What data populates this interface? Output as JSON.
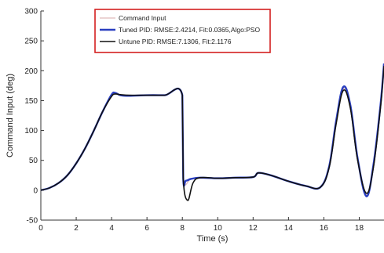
{
  "chart_data": {
    "type": "line",
    "xlabel": "Time (s)",
    "ylabel": "Command Input (deg)",
    "xlim": [
      0,
      19.4
    ],
    "ylim": [
      -50,
      300
    ],
    "xticks": [
      0,
      2,
      4,
      6,
      8,
      10,
      12,
      14,
      16,
      18
    ],
    "yticks": [
      -50,
      0,
      50,
      100,
      150,
      200,
      250,
      300
    ],
    "grid": false,
    "legend_position": "top-center",
    "legend_border_color": "#d42020",
    "series": [
      {
        "name": "Command Input",
        "color": "#d9a8a8",
        "x": [
          0,
          0.5,
          1,
          1.5,
          2,
          2.5,
          3,
          3.5,
          4,
          4.5,
          5,
          6,
          7,
          8,
          8.05,
          8.5,
          9,
          10,
          11,
          12,
          12.3,
          13,
          14,
          15,
          15.8,
          16.3,
          16.7,
          17.1,
          17.5,
          17.9,
          18.4,
          18.8,
          19.2,
          19.4
        ],
        "y": [
          0,
          4,
          12,
          25,
          45,
          70,
          100,
          132,
          160,
          159,
          159,
          159,
          159,
          159,
          20,
          20,
          20,
          20,
          21,
          22,
          29,
          25,
          15,
          7,
          5,
          40,
          115,
          170,
          140,
          55,
          -8,
          40,
          140,
          210
        ]
      },
      {
        "name": "Tuned PID: RMSE:2.4214, Fit:0.0365,Algo:PSO",
        "color": "#2a3fc0",
        "x": [
          0,
          0.5,
          1,
          1.5,
          2,
          2.5,
          3,
          3.5,
          4,
          4.2,
          4.5,
          5,
          6,
          7,
          8,
          8.05,
          8.2,
          8.5,
          9,
          10,
          11,
          12,
          12.3,
          13,
          14,
          15,
          15.8,
          16.3,
          16.7,
          17.1,
          17.5,
          17.9,
          18.4,
          18.8,
          19.2,
          19.4
        ],
        "y": [
          0,
          4,
          12,
          25,
          45,
          70,
          100,
          132,
          160,
          163,
          159,
          158,
          159,
          159,
          159,
          20,
          16,
          19,
          21,
          20,
          21,
          22,
          29,
          25,
          15,
          7,
          5,
          40,
          117,
          173,
          142,
          55,
          -10,
          42,
          142,
          212
        ]
      },
      {
        "name": "Untune PID: RMSE:7.1306,  Fit:2.1176",
        "color": "#111111",
        "x": [
          0,
          0.5,
          1,
          1.5,
          2,
          2.5,
          3,
          3.5,
          4,
          4.2,
          4.5,
          5,
          6,
          7,
          8,
          8.05,
          8.3,
          8.6,
          9,
          10,
          11,
          12,
          12.3,
          13,
          14,
          15,
          15.8,
          16.3,
          16.7,
          17.1,
          17.5,
          17.9,
          18.4,
          18.8,
          19.2,
          19.4
        ],
        "y": [
          0,
          4,
          12,
          25,
          45,
          70,
          100,
          132,
          157,
          161,
          160,
          159,
          159,
          159,
          159,
          20,
          -17,
          12,
          21,
          20,
          21,
          22,
          29,
          25,
          15,
          7,
          5,
          38,
          112,
          167,
          137,
          52,
          -5,
          38,
          138,
          208
        ]
      }
    ]
  }
}
